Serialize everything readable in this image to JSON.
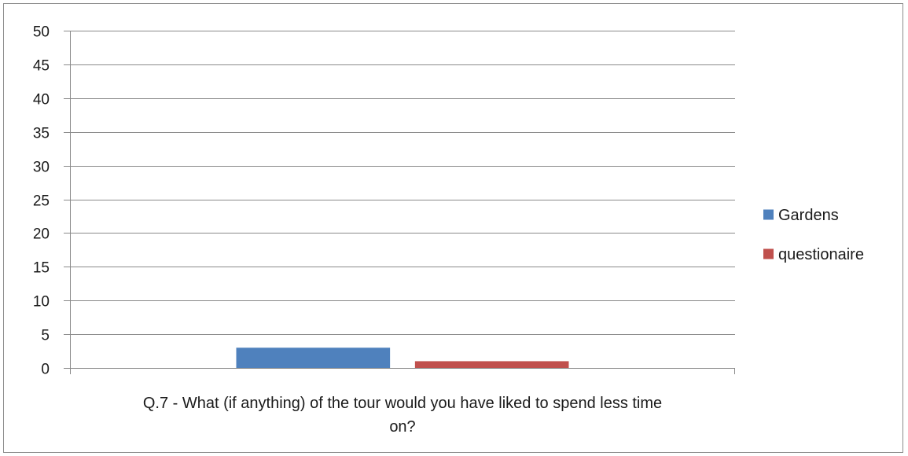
{
  "chart_data": {
    "type": "bar",
    "title": "",
    "xlabel": "Q.7 -  What (if anything) of the tour would you have liked to spend less time on?",
    "xlabel_lines": [
      "Q.7 -  What (if anything) of the tour would you have liked to spend less time",
      "on?"
    ],
    "ylabel": "",
    "ylim": [
      0,
      50
    ],
    "ytick_step": 5,
    "grid": true,
    "legend_position": "right",
    "series": [
      {
        "name": "Gardens",
        "value": 3,
        "color": "#4f81bd"
      },
      {
        "name": "questionaire",
        "value": 1,
        "color": "#c0504d"
      }
    ]
  }
}
